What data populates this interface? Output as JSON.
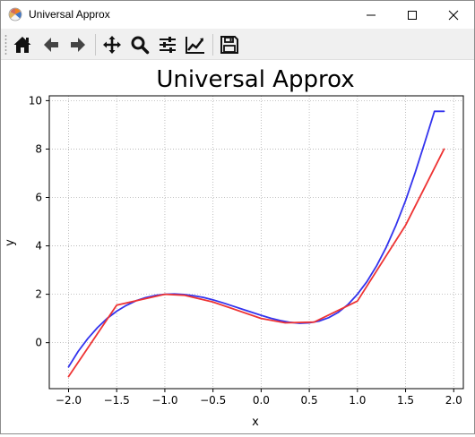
{
  "window": {
    "title": "Universal Approx",
    "icon": "matplotlib-logo-icon"
  },
  "titlebar_buttons": [
    "minimize-icon",
    "maximize-icon",
    "close-icon"
  ],
  "toolbar": {
    "buttons": [
      "home-icon",
      "back-arrow-icon",
      "forward-arrow-icon",
      "pan-move-icon",
      "zoom-magnifier-icon",
      "configure-subplots-icon",
      "edit-axis-icon",
      "save-floppy-icon"
    ]
  },
  "chart_data": {
    "type": "line",
    "title": "Universal Approx",
    "xlabel": "x",
    "ylabel": "y",
    "xlim": [
      -2.2,
      2.1
    ],
    "ylim": [
      -1.9,
      10.2
    ],
    "xticks": [
      "−2.0",
      "−1.5",
      "−1.0",
      "−0.5",
      "0.0",
      "0.5",
      "1.0",
      "1.5",
      "2.0"
    ],
    "xtick_values": [
      -2.0,
      -1.5,
      -1.0,
      -0.5,
      0.0,
      0.5,
      1.0,
      1.5,
      2.0
    ],
    "yticks": [
      "0",
      "2",
      "4",
      "6",
      "8",
      "10"
    ],
    "ytick_values": [
      0,
      2,
      4,
      6,
      8,
      10
    ],
    "grid": true,
    "series": [
      {
        "color": "#3333ee",
        "x": [
          -2.0,
          -1.9,
          -1.8,
          -1.7,
          -1.6,
          -1.5,
          -1.4,
          -1.3,
          -1.2,
          -1.1,
          -1.0,
          -0.9,
          -0.8,
          -0.7,
          -0.6,
          -0.5,
          -0.4,
          -0.3,
          -0.2,
          -0.1,
          0.0,
          0.1,
          0.2,
          0.3,
          0.4,
          0.5,
          0.6,
          0.7,
          0.8,
          0.9,
          1.0,
          1.1,
          1.2,
          1.3,
          1.4,
          1.5,
          1.6,
          1.7,
          1.8,
          1.9
        ],
        "y": [
          -1.0,
          -0.36,
          0.17,
          0.62,
          1.0,
          1.3,
          1.54,
          1.73,
          1.86,
          1.95,
          2.0,
          2.01,
          1.99,
          1.94,
          1.87,
          1.77,
          1.65,
          1.52,
          1.39,
          1.26,
          1.13,
          1.01,
          0.91,
          0.84,
          0.8,
          0.82,
          0.89,
          1.03,
          1.25,
          1.57,
          2.0,
          2.53,
          3.18,
          3.95,
          4.85,
          5.87,
          7.03,
          8.28,
          9.56,
          9.56
        ]
      },
      {
        "color": "#ee3333",
        "x": [
          -2.0,
          -1.5,
          -1.0,
          -0.8,
          -0.5,
          0.0,
          0.25,
          0.55,
          1.0,
          1.5,
          1.9
        ],
        "y": [
          -1.4,
          1.55,
          2.0,
          1.96,
          1.68,
          1.0,
          0.82,
          0.85,
          1.72,
          4.85,
          8.0
        ]
      }
    ]
  }
}
